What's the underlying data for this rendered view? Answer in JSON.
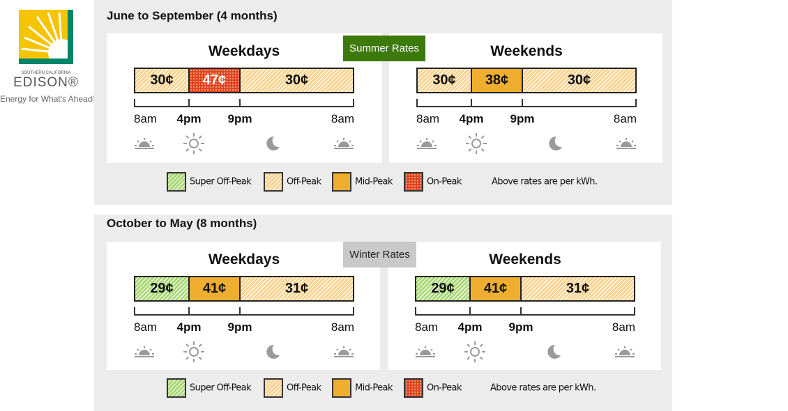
{
  "logo": {
    "region": "SOUTHERN CALIFORNIA",
    "name": "EDISON®",
    "tagline": "Energy for What's Ahead®"
  },
  "seasons": [
    {
      "title": "June to September (4 months)",
      "badge": "Summer Rates",
      "badge_color": "#3d7a0c",
      "badge_text_color": "#ffffff",
      "panels": [
        {
          "heading": "Weekdays",
          "times": [
            "8am",
            "4pm",
            "9pm",
            "8am"
          ],
          "segments": [
            {
              "label": "30¢",
              "color": "#fbd38f",
              "pattern": "hatch",
              "text_color": "#111111"
            },
            {
              "label": "47¢",
              "color": "#e0401c",
              "pattern": "dots",
              "text_color": "#ffffff"
            },
            {
              "label": "30¢",
              "color": "#fbd38f",
              "pattern": "hatch",
              "text_color": "#111111"
            }
          ]
        },
        {
          "heading": "Weekends",
          "times": [
            "8am",
            "4pm",
            "9pm",
            "8am"
          ],
          "segments": [
            {
              "label": "30¢",
              "color": "#fbd38f",
              "pattern": "hatch",
              "text_color": "#111111"
            },
            {
              "label": "38¢",
              "color": "#f0ae30",
              "pattern": "solid",
              "text_color": "#111111"
            },
            {
              "label": "30¢",
              "color": "#fbd38f",
              "pattern": "hatch",
              "text_color": "#111111"
            }
          ]
        }
      ],
      "legend": [
        {
          "label": "Super Off-Peak",
          "color": "#a8d872",
          "pattern": "hatch"
        },
        {
          "label": "Off-Peak",
          "color": "#fbd38f",
          "pattern": "hatch"
        },
        {
          "label": "Mid-Peak",
          "color": "#f0ae30",
          "pattern": "solid"
        },
        {
          "label": "On-Peak",
          "color": "#e0401c",
          "pattern": "dots"
        }
      ],
      "note": "Above rates are per kWh."
    },
    {
      "title": "October to May (8 months)",
      "badge": "Winter Rates",
      "badge_color": "#c9c9c9",
      "badge_text_color": "#222222",
      "panels": [
        {
          "heading": "Weekdays",
          "times": [
            "8am",
            "4pm",
            "9pm",
            "8am"
          ],
          "segments": [
            {
              "label": "29¢",
              "color": "#a8d872",
              "pattern": "hatch",
              "text_color": "#111111"
            },
            {
              "label": "41¢",
              "color": "#f0ae30",
              "pattern": "solid",
              "text_color": "#111111"
            },
            {
              "label": "31¢",
              "color": "#fbd38f",
              "pattern": "hatch",
              "text_color": "#111111"
            }
          ]
        },
        {
          "heading": "Weekends",
          "times": [
            "8am",
            "4pm",
            "9pm",
            "8am"
          ],
          "segments": [
            {
              "label": "29¢",
              "color": "#a8d872",
              "pattern": "hatch",
              "text_color": "#111111"
            },
            {
              "label": "41¢",
              "color": "#f0ae30",
              "pattern": "solid",
              "text_color": "#111111"
            },
            {
              "label": "31¢",
              "color": "#fbd38f",
              "pattern": "hatch",
              "text_color": "#111111"
            }
          ]
        }
      ],
      "legend": [
        {
          "label": "Super Off-Peak",
          "color": "#a8d872",
          "pattern": "hatch"
        },
        {
          "label": "Off-Peak",
          "color": "#fbd38f",
          "pattern": "hatch"
        },
        {
          "label": "Mid-Peak",
          "color": "#f0ae30",
          "pattern": "solid"
        },
        {
          "label": "On-Peak",
          "color": "#e0401c",
          "pattern": "dots"
        }
      ],
      "note": "Above rates are per kWh."
    }
  ]
}
